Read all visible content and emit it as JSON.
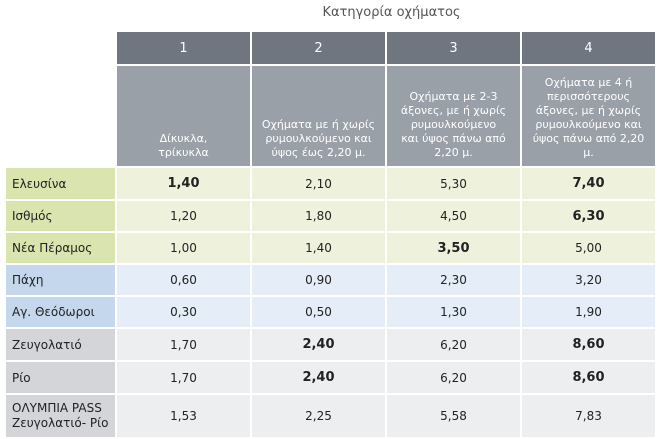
{
  "caption": "Κατηγορία οχήματος",
  "columns": [
    {
      "number": "1",
      "line1": "Δίκυκλα,",
      "line2": "τρίκυκλα",
      "line3": "",
      "line4": ""
    },
    {
      "number": "2",
      "line1": "Οχήματα με ή χωρίς",
      "line2": "ρυμουλκούμενο και",
      "line3": "ύψος έως 2,20 μ.",
      "line4": ""
    },
    {
      "number": "3",
      "line1": "Οχήματα με 2-3",
      "line2": "άξονες, με ή χωρίς",
      "line3": "ρυμουλκούμενο",
      "line4": "και ύψος πάνω από 2,20 μ."
    },
    {
      "number": "4",
      "line1": "Οχήματα με 4 ή",
      "line2": "περισσότερους",
      "line3": "άξονες, με ή χωρίς ρυμουλκούμενο και",
      "line4": "ύψος πάνω από 2,20 μ."
    }
  ],
  "rows": [
    {
      "station": "Ελευσίνα",
      "values": [
        "1,40",
        "2,10",
        "5,30",
        "7,40"
      ]
    },
    {
      "station": "Ισθμός",
      "values": [
        "1,20",
        "1,80",
        "4,50",
        "6,30"
      ]
    },
    {
      "station": "Νέα Πέραμος",
      "values": [
        "1,00",
        "1,40",
        "3,50",
        "5,00"
      ]
    },
    {
      "station": "Πάχη",
      "values": [
        "0,60",
        "0,90",
        "2,30",
        "3,20"
      ]
    },
    {
      "station": "Αγ. Θεόδωροι",
      "values": [
        "0,30",
        "0,50",
        "1,30",
        "1,90"
      ]
    },
    {
      "station": "Ζευγολατιό",
      "values": [
        "1,70",
        "2,40",
        "6,20",
        "8,60"
      ]
    },
    {
      "station": "Ρίο",
      "values": [
        "1,70",
        "2,40",
        "6,20",
        "8,60"
      ]
    },
    {
      "station_line1": "ΟΛΥΜΠΙΑ PASS",
      "station_line2": "Ζευγολατιό- Ρίο",
      "values": [
        "1,53",
        "2,25",
        "5,58",
        "7,83"
      ]
    }
  ]
}
